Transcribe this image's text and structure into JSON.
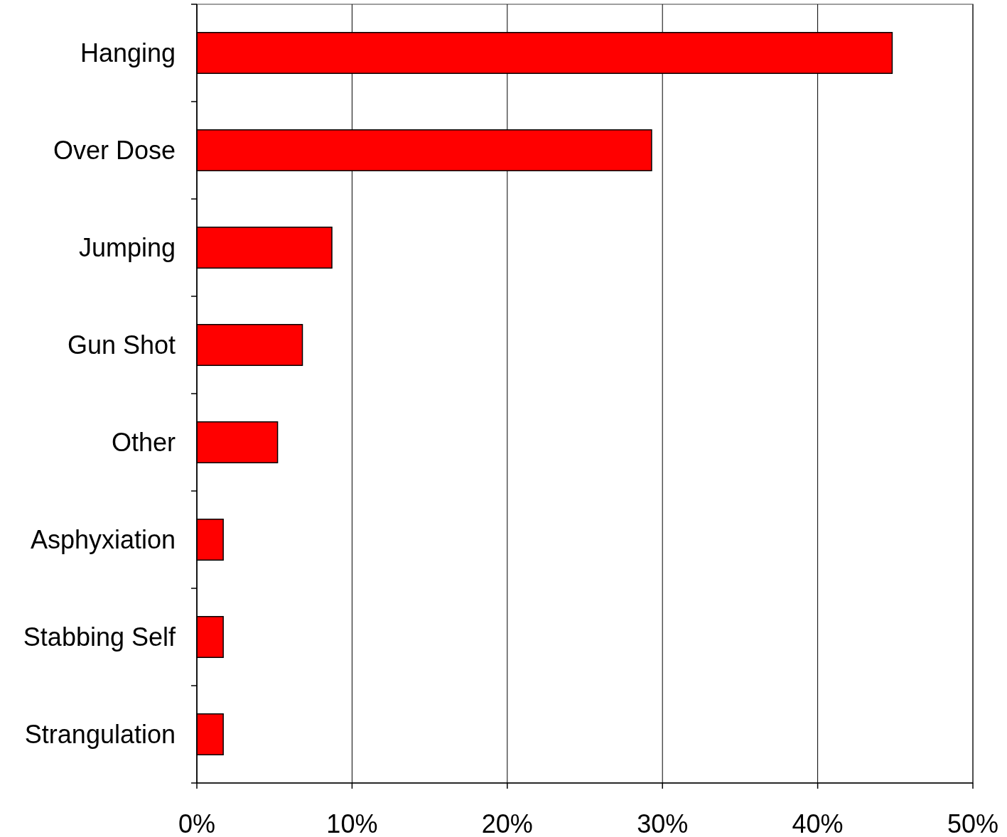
{
  "chart_data": {
    "type": "bar",
    "orientation": "horizontal",
    "categories": [
      "Hanging",
      "Over Dose",
      "Jumping",
      "Gun Shot",
      "Other",
      "Asphyxiation",
      "Stabbing Self",
      "Strangulation"
    ],
    "values": [
      44.8,
      29.3,
      8.7,
      6.8,
      5.2,
      1.7,
      1.7,
      1.7
    ],
    "color": "#ff0000",
    "xlim": [
      0,
      50
    ],
    "xticks": [
      {
        "value": 0,
        "label": "0%"
      },
      {
        "value": 10,
        "label": "10%"
      },
      {
        "value": 20,
        "label": "20%"
      },
      {
        "value": 30,
        "label": "30%"
      },
      {
        "value": 40,
        "label": "40%"
      },
      {
        "value": 50,
        "label": "50%"
      }
    ],
    "grid": "x"
  }
}
